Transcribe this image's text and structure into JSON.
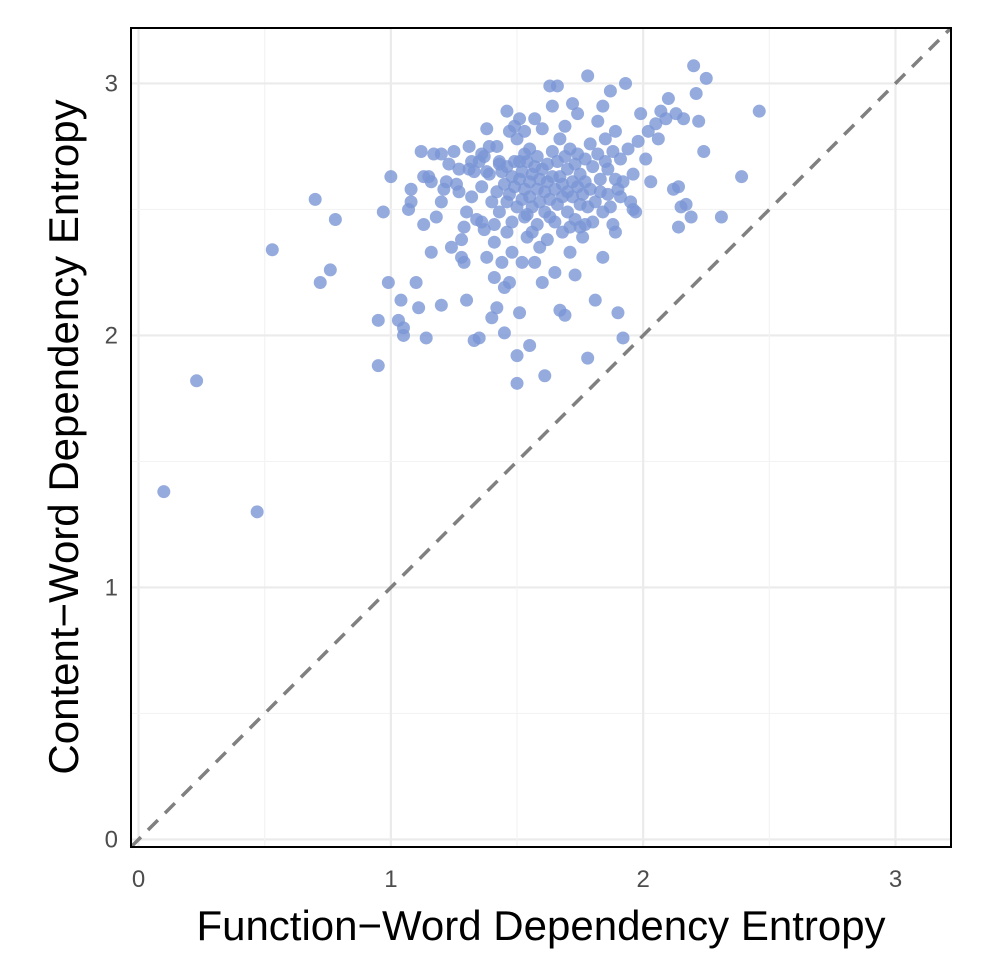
{
  "chart_data": {
    "type": "scatter",
    "xlabel": "Function−Word Dependency Entropy",
    "ylabel": "Content−Word Dependency Entropy",
    "xlim": [
      -0.03,
      3.22
    ],
    "ylim": [
      -0.03,
      3.22
    ],
    "x_ticks": [
      "0",
      "1",
      "2",
      "3"
    ],
    "y_ticks": [
      "0",
      "1",
      "2",
      "3"
    ],
    "grid": true,
    "legend": "none",
    "reference_line": {
      "type": "identity",
      "style": "dashed",
      "color": "#808080"
    },
    "point_color": "#7b96d6",
    "points": [
      [
        0.1,
        1.38
      ],
      [
        0.23,
        1.82
      ],
      [
        0.47,
        1.3
      ],
      [
        0.53,
        2.34
      ],
      [
        0.7,
        2.54
      ],
      [
        0.72,
        2.21
      ],
      [
        0.76,
        2.26
      ],
      [
        0.78,
        2.46
      ],
      [
        0.95,
        1.88
      ],
      [
        0.95,
        2.06
      ],
      [
        0.97,
        2.49
      ],
      [
        0.99,
        2.21
      ],
      [
        1.0,
        2.63
      ],
      [
        1.03,
        2.06
      ],
      [
        1.04,
        2.14
      ],
      [
        1.05,
        2.03
      ],
      [
        1.05,
        2.0
      ],
      [
        1.07,
        2.5
      ],
      [
        1.08,
        2.53
      ],
      [
        1.08,
        2.58
      ],
      [
        1.1,
        2.21
      ],
      [
        1.11,
        2.11
      ],
      [
        1.12,
        2.73
      ],
      [
        1.13,
        2.63
      ],
      [
        1.13,
        2.44
      ],
      [
        1.14,
        1.99
      ],
      [
        1.15,
        2.63
      ],
      [
        1.16,
        2.61
      ],
      [
        1.16,
        2.33
      ],
      [
        1.17,
        2.72
      ],
      [
        1.18,
        2.47
      ],
      [
        1.2,
        2.53
      ],
      [
        1.2,
        2.72
      ],
      [
        1.2,
        2.12
      ],
      [
        1.21,
        2.58
      ],
      [
        1.22,
        2.61
      ],
      [
        1.23,
        2.68
      ],
      [
        1.24,
        2.35
      ],
      [
        1.25,
        2.73
      ],
      [
        1.26,
        2.6
      ],
      [
        1.27,
        2.57
      ],
      [
        1.27,
        2.66
      ],
      [
        1.28,
        2.31
      ],
      [
        1.28,
        2.38
      ],
      [
        1.29,
        2.43
      ],
      [
        1.29,
        2.29
      ],
      [
        1.3,
        2.49
      ],
      [
        1.3,
        2.14
      ],
      [
        1.31,
        2.75
      ],
      [
        1.31,
        2.66
      ],
      [
        1.32,
        2.69
      ],
      [
        1.32,
        2.55
      ],
      [
        1.33,
        2.65
      ],
      [
        1.33,
        1.98
      ],
      [
        1.34,
        2.46
      ],
      [
        1.35,
        1.99
      ],
      [
        1.35,
        2.69
      ],
      [
        1.36,
        2.72
      ],
      [
        1.36,
        2.45
      ],
      [
        1.36,
        2.59
      ],
      [
        1.37,
        2.42
      ],
      [
        1.37,
        2.71
      ],
      [
        1.38,
        2.82
      ],
      [
        1.38,
        2.65
      ],
      [
        1.38,
        2.31
      ],
      [
        1.39,
        2.75
      ],
      [
        1.39,
        2.64
      ],
      [
        1.4,
        2.07
      ],
      [
        1.4,
        2.53
      ],
      [
        1.41,
        2.44
      ],
      [
        1.41,
        2.37
      ],
      [
        1.41,
        2.23
      ],
      [
        1.42,
        2.75
      ],
      [
        1.42,
        2.57
      ],
      [
        1.42,
        2.11
      ],
      [
        1.43,
        2.69
      ],
      [
        1.43,
        2.68
      ],
      [
        1.43,
        2.49
      ],
      [
        1.44,
        2.29
      ],
      [
        1.44,
        2.65
      ],
      [
        1.45,
        2.6
      ],
      [
        1.45,
        2.19
      ],
      [
        1.45,
        2.01
      ],
      [
        1.46,
        2.41
      ],
      [
        1.46,
        2.67
      ],
      [
        1.46,
        2.53
      ],
      [
        1.47,
        2.21
      ],
      [
        1.47,
        2.81
      ],
      [
        1.47,
        2.56
      ],
      [
        1.48,
        2.63
      ],
      [
        1.48,
        2.45
      ],
      [
        1.48,
        2.33
      ],
      [
        1.49,
        2.83
      ],
      [
        1.49,
        2.69
      ],
      [
        1.49,
        2.59
      ],
      [
        1.5,
        2.51
      ],
      [
        1.5,
        1.92
      ],
      [
        1.5,
        1.81
      ],
      [
        1.5,
        2.78
      ],
      [
        1.51,
        2.69
      ],
      [
        1.51,
        2.62
      ],
      [
        1.51,
        2.09
      ],
      [
        1.51,
        2.86
      ],
      [
        1.52,
        2.65
      ],
      [
        1.52,
        2.54
      ],
      [
        1.52,
        2.29
      ],
      [
        1.53,
        2.58
      ],
      [
        1.53,
        2.72
      ],
      [
        1.53,
        2.81
      ],
      [
        1.54,
        2.48
      ],
      [
        1.54,
        2.39
      ],
      [
        1.54,
        2.69
      ],
      [
        1.55,
        1.96
      ],
      [
        1.55,
        2.61
      ],
      [
        1.55,
        2.74
      ],
      [
        1.55,
        2.55
      ],
      [
        1.56,
        2.51
      ],
      [
        1.56,
        2.64
      ],
      [
        1.56,
        2.41
      ],
      [
        1.57,
        2.86
      ],
      [
        1.57,
        2.67
      ],
      [
        1.57,
        2.29
      ],
      [
        1.58,
        2.58
      ],
      [
        1.58,
        2.44
      ],
      [
        1.58,
        2.71
      ],
      [
        1.59,
        2.35
      ],
      [
        1.59,
        2.53
      ],
      [
        1.59,
        2.62
      ],
      [
        1.6,
        2.66
      ],
      [
        1.6,
        2.21
      ],
      [
        1.6,
        2.82
      ],
      [
        1.61,
        2.49
      ],
      [
        1.61,
        2.57
      ],
      [
        1.61,
        1.84
      ],
      [
        1.62,
        2.68
      ],
      [
        1.62,
        2.61
      ],
      [
        1.62,
        2.38
      ],
      [
        1.63,
        2.99
      ],
      [
        1.63,
        2.54
      ],
      [
        1.63,
        2.47
      ],
      [
        1.64,
        2.73
      ],
      [
        1.64,
        2.63
      ],
      [
        1.64,
        2.91
      ],
      [
        1.65,
        2.58
      ],
      [
        1.65,
        2.45
      ],
      [
        1.65,
        2.25
      ],
      [
        1.66,
        2.69
      ],
      [
        1.66,
        2.52
      ],
      [
        1.66,
        2.99
      ],
      [
        1.67,
        2.63
      ],
      [
        1.67,
        2.78
      ],
      [
        1.67,
        2.1
      ],
      [
        1.68,
        2.6
      ],
      [
        1.68,
        2.55
      ],
      [
        1.68,
        2.41
      ],
      [
        1.69,
        2.71
      ],
      [
        1.69,
        2.83
      ],
      [
        1.69,
        2.08
      ],
      [
        1.7,
        2.57
      ],
      [
        1.7,
        2.49
      ],
      [
        1.7,
        2.66
      ],
      [
        1.71,
        2.43
      ],
      [
        1.71,
        2.74
      ],
      [
        1.71,
        2.33
      ],
      [
        1.72,
        2.61
      ],
      [
        1.72,
        2.92
      ],
      [
        1.72,
        2.55
      ],
      [
        1.73,
        2.68
      ],
      [
        1.73,
        2.46
      ],
      [
        1.73,
        2.24
      ],
      [
        1.74,
        2.59
      ],
      [
        1.74,
        2.72
      ],
      [
        1.74,
        2.88
      ],
      [
        1.75,
        2.52
      ],
      [
        1.75,
        2.43
      ],
      [
        1.75,
        2.64
      ],
      [
        1.76,
        2.56
      ],
      [
        1.76,
        2.39
      ],
      [
        1.77,
        2.7
      ],
      [
        1.77,
        2.61
      ],
      [
        1.78,
        3.03
      ],
      [
        1.78,
        2.51
      ],
      [
        1.78,
        1.91
      ],
      [
        1.79,
        2.76
      ],
      [
        1.79,
        2.58
      ],
      [
        1.8,
        2.45
      ],
      [
        1.8,
        2.67
      ],
      [
        1.81,
        2.14
      ],
      [
        1.81,
        2.53
      ],
      [
        1.82,
        2.72
      ],
      [
        1.82,
        2.85
      ],
      [
        1.83,
        2.62
      ],
      [
        1.83,
        2.57
      ],
      [
        1.84,
        2.91
      ],
      [
        1.84,
        2.49
      ],
      [
        1.84,
        2.31
      ],
      [
        1.85,
        2.69
      ],
      [
        1.85,
        2.78
      ],
      [
        1.86,
        2.56
      ],
      [
        1.86,
        2.66
      ],
      [
        1.87,
        2.97
      ],
      [
        1.87,
        2.51
      ],
      [
        1.88,
        2.73
      ],
      [
        1.88,
        2.44
      ],
      [
        1.89,
        2.62
      ],
      [
        1.89,
        2.81
      ],
      [
        1.9,
        2.58
      ],
      [
        1.9,
        2.09
      ],
      [
        1.91,
        2.55
      ],
      [
        1.91,
        2.7
      ],
      [
        1.92,
        1.99
      ],
      [
        1.92,
        2.61
      ],
      [
        1.93,
        3.0
      ],
      [
        1.94,
        2.74
      ],
      [
        1.95,
        2.53
      ],
      [
        1.96,
        2.64
      ],
      [
        1.97,
        2.49
      ],
      [
        1.98,
        2.77
      ],
      [
        1.99,
        2.88
      ],
      [
        2.01,
        2.7
      ],
      [
        2.02,
        2.81
      ],
      [
        2.03,
        2.61
      ],
      [
        2.05,
        2.84
      ],
      [
        2.06,
        2.78
      ],
      [
        2.07,
        2.89
      ],
      [
        2.09,
        2.86
      ],
      [
        2.1,
        2.94
      ],
      [
        2.12,
        2.58
      ],
      [
        2.13,
        2.88
      ],
      [
        2.14,
        2.59
      ],
      [
        2.15,
        2.51
      ],
      [
        2.16,
        2.86
      ],
      [
        2.17,
        2.52
      ],
      [
        2.19,
        2.47
      ],
      [
        2.2,
        3.07
      ],
      [
        2.21,
        2.96
      ],
      [
        2.22,
        2.85
      ],
      [
        2.24,
        2.73
      ],
      [
        2.25,
        3.02
      ],
      [
        2.31,
        2.47
      ],
      [
        2.39,
        2.63
      ],
      [
        2.46,
        2.89
      ],
      [
        2.14,
        2.43
      ],
      [
        1.96,
        2.5
      ],
      [
        1.89,
        2.41
      ],
      [
        1.77,
        2.44
      ],
      [
        1.46,
        2.89
      ],
      [
        1.53,
        2.47
      ]
    ]
  }
}
